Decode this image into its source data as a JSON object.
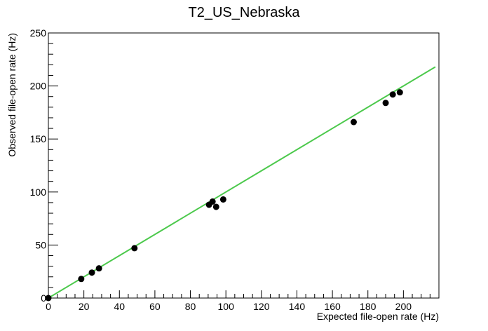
{
  "chart_data": {
    "type": "scatter",
    "title": "T2_US_Nebraska",
    "xlabel": "Expected file-open rate (Hz)",
    "ylabel": "Observed file-open rate (Hz)",
    "xlim": [
      0,
      220
    ],
    "ylim": [
      0,
      250
    ],
    "x_ticks": [
      0,
      20,
      40,
      60,
      80,
      100,
      120,
      140,
      160,
      180,
      200
    ],
    "y_ticks": [
      0,
      50,
      100,
      150,
      200,
      250
    ],
    "grid": false,
    "legend": "none",
    "colors": {
      "points": "#000000",
      "fit_line": "#4cc94c"
    },
    "series": [
      {
        "kind": "points",
        "x": [
          0,
          18.5,
          24.5,
          28.5,
          48.5,
          90.5,
          92.5,
          94.5,
          98.5,
          172,
          190,
          194,
          198
        ],
        "y": [
          0,
          18,
          24,
          28,
          47,
          88,
          91,
          86,
          93,
          166,
          184,
          192,
          194
        ]
      },
      {
        "kind": "fit_line",
        "x": [
          0,
          218
        ],
        "y": [
          0,
          218
        ]
      }
    ]
  }
}
